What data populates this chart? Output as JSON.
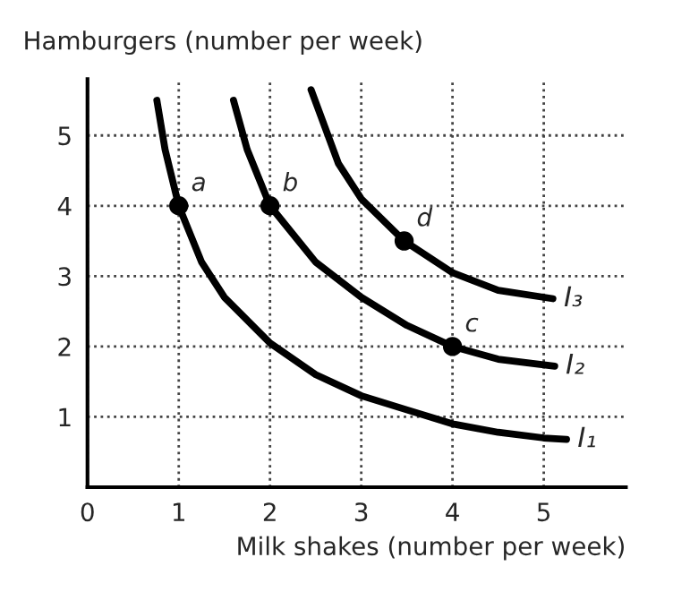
{
  "chart_data": {
    "type": "line",
    "xlabel": "Milk shakes (number per week)",
    "ylabel": "Hamburgers (number per week)",
    "xlim": [
      0,
      5.9
    ],
    "ylim": [
      0,
      5.8
    ],
    "xticks": [
      {
        "value": 0,
        "label": "0"
      },
      1,
      2,
      3,
      4,
      5
    ],
    "yticks": [
      1,
      2,
      3,
      4,
      5
    ],
    "grid": true,
    "legend": false,
    "marker": "none",
    "line_style": "solid",
    "series": [
      {
        "name": "I₁",
        "color": "#000000",
        "x": [
          0.76,
          0.85,
          1,
          1.25,
          1.5,
          2,
          2.5,
          3,
          3.5,
          4,
          4.5,
          5,
          5.25
        ],
        "values": [
          5.5,
          4.8,
          4,
          3.2,
          2.7,
          2.05,
          1.6,
          1.3,
          1.1,
          0.9,
          0.78,
          0.7,
          0.68
        ]
      },
      {
        "name": "I₂",
        "color": "#000000",
        "x": [
          1.6,
          1.75,
          2,
          2.5,
          3,
          3.5,
          4,
          4.5,
          5.12
        ],
        "values": [
          5.5,
          4.8,
          4,
          3.2,
          2.7,
          2.3,
          2,
          1.82,
          1.72
        ]
      },
      {
        "name": "I₃",
        "color": "#000000",
        "x": [
          2.45,
          2.75,
          3,
          3.47,
          4,
          4.5,
          5.1
        ],
        "values": [
          5.65,
          4.6,
          4.1,
          3.5,
          3.05,
          2.8,
          2.68
        ]
      },
      {
        "type": "scatter",
        "color": "#000000",
        "marker": "circle",
        "x": [
          1,
          2,
          4,
          3.47
        ],
        "values": [
          4,
          4,
          2,
          3.5
        ]
      }
    ],
    "annotations": [
      {
        "text": "a",
        "x": 1,
        "y": 4
      },
      {
        "text": "b",
        "x": 2,
        "y": 4
      },
      {
        "text": "c",
        "x": 4,
        "y": 2
      },
      {
        "text": "d",
        "x": 3.47,
        "y": 3.5
      }
    ]
  }
}
